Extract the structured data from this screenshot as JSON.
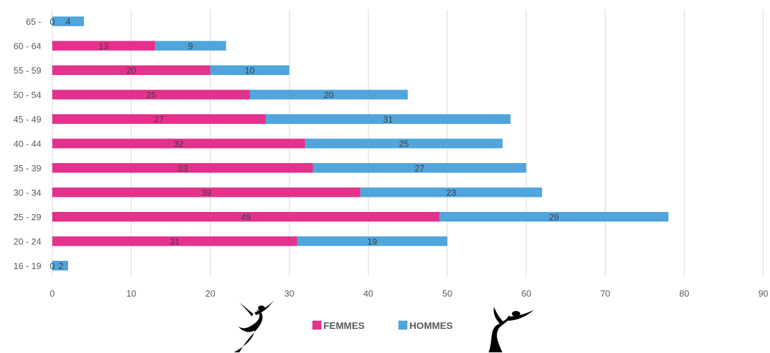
{
  "chart_data": {
    "type": "bar",
    "orientation": "horizontal",
    "stacked": true,
    "categories": [
      "16 - 19",
      "20 - 24",
      "25 - 29",
      "30 - 34",
      "35 - 39",
      "40 - 44",
      "45 - 49",
      "50 - 54",
      "55 - 59",
      "60 - 64",
      "65 -"
    ],
    "series": [
      {
        "name": "FEMMES",
        "color": "#e3318c",
        "values": [
          0,
          31,
          49,
          39,
          33,
          32,
          27,
          25,
          20,
          13,
          0
        ]
      },
      {
        "name": "HOMMES",
        "color": "#4fa5dc",
        "values": [
          2,
          19,
          29,
          23,
          27,
          25,
          31,
          20,
          10,
          9,
          4
        ]
      }
    ],
    "xlim": [
      0,
      90
    ],
    "xticks": [
      0,
      10,
      20,
      30,
      40,
      50,
      60,
      70,
      80,
      90
    ],
    "grid": true,
    "legend_position": "bottom",
    "title": "",
    "xlabel": "",
    "ylabel": ""
  },
  "decorations": {
    "left_figure_icon": "dancer-icon",
    "right_figure_icon": "dancer-icon"
  }
}
